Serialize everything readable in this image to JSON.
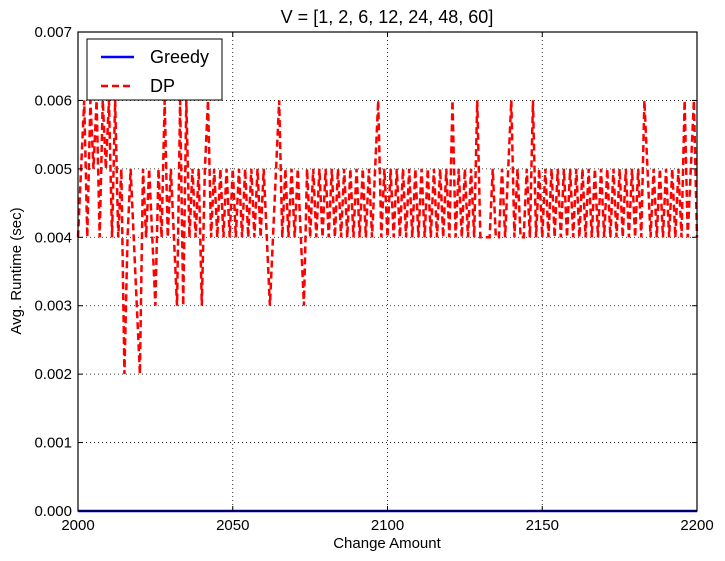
{
  "chart_data": {
    "type": "line",
    "title": "V = [1, 2, 6, 12, 24, 48, 60]",
    "xlabel": "Change Amount",
    "ylabel": "Avg. Runtime (sec)",
    "xlim": [
      2000,
      2200
    ],
    "ylim": [
      0,
      0.007
    ],
    "xticks": [
      "2000",
      "2050",
      "2100",
      "2150",
      "2200"
    ],
    "yticks": [
      "0.000",
      "0.001",
      "0.002",
      "0.003",
      "0.004",
      "0.005",
      "0.006",
      "0.007"
    ],
    "grid": true,
    "legend_position": "top-left",
    "series": [
      {
        "name": "Greedy",
        "color": "#0000ff",
        "style": "solid",
        "x": [
          2000,
          2200
        ],
        "y": [
          0,
          0
        ]
      },
      {
        "name": "DP",
        "color": "#ff0000",
        "style": "dashed",
        "x": [
          2000,
          2001,
          2002,
          2003,
          2004,
          2005,
          2006,
          2007,
          2008,
          2009,
          2010,
          2011,
          2012,
          2013,
          2014,
          2015,
          2016,
          2017,
          2018,
          2019,
          2020,
          2021,
          2022,
          2023,
          2024,
          2025,
          2026,
          2027,
          2028,
          2029,
          2030,
          2031,
          2032,
          2033,
          2034,
          2035,
          2036,
          2037,
          2038,
          2039,
          2040,
          2041,
          2042,
          2043,
          2044,
          2045,
          2046,
          2047,
          2048,
          2049,
          2050,
          2051,
          2052,
          2053,
          2054,
          2055,
          2056,
          2057,
          2058,
          2059,
          2060,
          2061,
          2062,
          2063,
          2064,
          2065,
          2066,
          2067,
          2068,
          2069,
          2070,
          2071,
          2072,
          2073,
          2074,
          2075,
          2076,
          2077,
          2078,
          2079,
          2080,
          2081,
          2082,
          2083,
          2084,
          2085,
          2086,
          2087,
          2088,
          2089,
          2090,
          2091,
          2092,
          2093,
          2094,
          2095,
          2096,
          2097,
          2098,
          2099,
          2100,
          2101,
          2102,
          2103,
          2104,
          2105,
          2106,
          2107,
          2108,
          2109,
          2110,
          2111,
          2112,
          2113,
          2114,
          2115,
          2116,
          2117,
          2118,
          2119,
          2120,
          2121,
          2122,
          2123,
          2124,
          2125,
          2126,
          2127,
          2128,
          2129,
          2130,
          2131,
          2132,
          2133,
          2134,
          2135,
          2136,
          2137,
          2138,
          2139,
          2140,
          2141,
          2142,
          2143,
          2144,
          2145,
          2146,
          2147,
          2148,
          2149,
          2150,
          2151,
          2152,
          2153,
          2154,
          2155,
          2156,
          2157,
          2158,
          2159,
          2160,
          2161,
          2162,
          2163,
          2164,
          2165,
          2166,
          2167,
          2168,
          2169,
          2170,
          2171,
          2172,
          2173,
          2174,
          2175,
          2176,
          2177,
          2178,
          2179,
          2180,
          2181,
          2182,
          2183,
          2184,
          2185,
          2186,
          2187,
          2188,
          2189,
          2190,
          2191,
          2192,
          2193,
          2194,
          2195,
          2196,
          2197,
          2198,
          2199,
          2200
        ],
        "y": [
          0.004,
          0.005,
          0.006,
          0.004,
          0.006,
          0.005,
          0.006,
          0.004,
          0.006,
          0.005,
          0.006,
          0.004,
          0.006,
          0.004,
          0.005,
          0.002,
          0.004,
          0.005,
          0.004,
          0.003,
          0.002,
          0.005,
          0.004,
          0.005,
          0.004,
          0.003,
          0.005,
          0.004,
          0.006,
          0.004,
          0.005,
          0.004,
          0.003,
          0.006,
          0.003,
          0.006,
          0.004,
          0.005,
          0.004,
          0.005,
          0.003,
          0.005,
          0.006,
          0.004,
          0.005,
          0.004,
          0.005,
          0.004,
          0.005,
          0.004,
          0.005,
          0.004,
          0.005,
          0.004,
          0.005,
          0.004,
          0.005,
          0.004,
          0.005,
          0.004,
          0.005,
          0.004,
          0.003,
          0.004,
          0.005,
          0.006,
          0.004,
          0.005,
          0.004,
          0.005,
          0.004,
          0.005,
          0.004,
          0.003,
          0.005,
          0.004,
          0.005,
          0.004,
          0.005,
          0.004,
          0.005,
          0.004,
          0.005,
          0.004,
          0.005,
          0.004,
          0.005,
          0.004,
          0.005,
          0.004,
          0.005,
          0.004,
          0.005,
          0.004,
          0.005,
          0.004,
          0.005,
          0.006,
          0.004,
          0.005,
          0.004,
          0.005,
          0.004,
          0.005,
          0.004,
          0.005,
          0.004,
          0.005,
          0.004,
          0.005,
          0.004,
          0.005,
          0.004,
          0.005,
          0.004,
          0.005,
          0.004,
          0.005,
          0.004,
          0.005,
          0.004,
          0.006,
          0.004,
          0.005,
          0.004,
          0.005,
          0.004,
          0.005,
          0.004,
          0.006,
          0.004,
          0.004,
          0.004,
          0.004,
          0.005,
          0.004,
          0.004,
          0.005,
          0.004,
          0.005,
          0.006,
          0.004,
          0.005,
          0.004,
          0.004,
          0.005,
          0.004,
          0.006,
          0.004,
          0.005,
          0.004,
          0.005,
          0.004,
          0.005,
          0.004,
          0.005,
          0.004,
          0.005,
          0.004,
          0.005,
          0.004,
          0.005,
          0.004,
          0.005,
          0.004,
          0.005,
          0.004,
          0.005,
          0.004,
          0.005,
          0.004,
          0.005,
          0.004,
          0.005,
          0.004,
          0.005,
          0.004,
          0.005,
          0.004,
          0.005,
          0.004,
          0.005,
          0.004,
          0.006,
          0.005,
          0.004,
          0.005,
          0.004,
          0.005,
          0.004,
          0.005,
          0.004,
          0.005,
          0.004,
          0.005,
          0.004,
          0.006,
          0.004,
          0.005,
          0.006,
          0.004
        ]
      }
    ]
  }
}
